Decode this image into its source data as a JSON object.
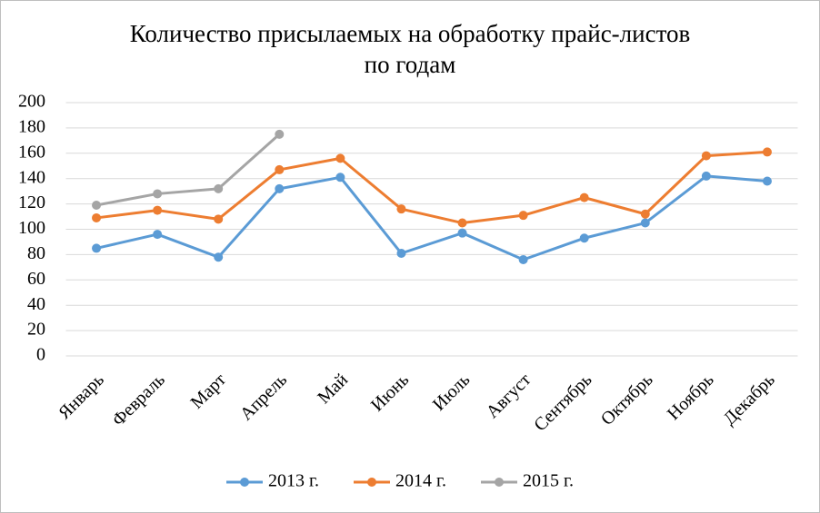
{
  "chart_data": {
    "type": "line",
    "title": [
      "Количество присылаемых на обработку прайс-листов",
      "по годам"
    ],
    "categories": [
      "Январь",
      "Февраль",
      "Март",
      "Апрель",
      "Май",
      "Июнь",
      "Июль",
      "Август",
      "Сентябрь",
      "Октябрь",
      "Ноябрь",
      "Декабрь"
    ],
    "series": [
      {
        "name": "2013 г.",
        "color": "#5b9bd5",
        "values": [
          85,
          96,
          78,
          132,
          141,
          81,
          97,
          76,
          93,
          105,
          142,
          138
        ]
      },
      {
        "name": "2014 г.",
        "color": "#ed7d31",
        "values": [
          109,
          115,
          108,
          147,
          156,
          116,
          105,
          111,
          125,
          112,
          158,
          161
        ]
      },
      {
        "name": "2015 г.",
        "color": "#a5a5a5",
        "values": [
          119,
          128,
          132,
          175,
          null,
          null,
          null,
          null,
          null,
          null,
          null,
          null
        ]
      }
    ],
    "ylim": [
      0,
      200
    ],
    "yticks": [
      0,
      20,
      40,
      60,
      80,
      100,
      120,
      140,
      160,
      180,
      200
    ],
    "grid": true,
    "legend": "bottom"
  }
}
